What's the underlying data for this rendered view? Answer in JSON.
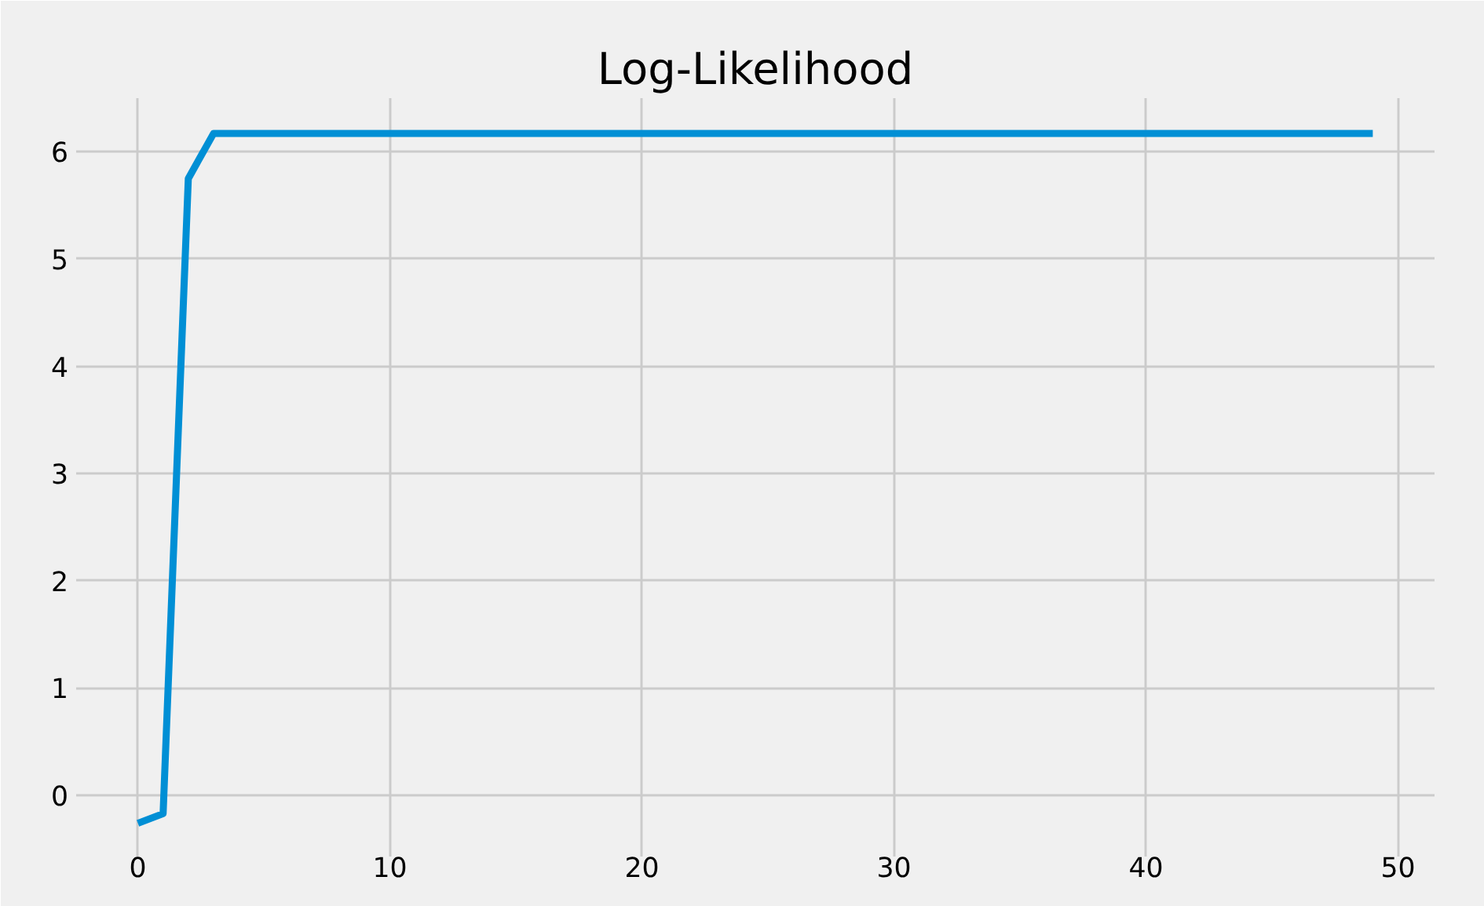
{
  "chart_data": {
    "type": "line",
    "title": "Log-Likelihood",
    "x": [
      0,
      1,
      2,
      3,
      4,
      5,
      6,
      7,
      8,
      9,
      10,
      11,
      12,
      13,
      14,
      15,
      16,
      17,
      18,
      19,
      20,
      21,
      22,
      23,
      24,
      25,
      26,
      27,
      28,
      29,
      30,
      31,
      32,
      33,
      34,
      35,
      36,
      37,
      38,
      39,
      40,
      41,
      42,
      43,
      44,
      45,
      46,
      47,
      48,
      49
    ],
    "series": [
      {
        "color": "#008fd5",
        "values": [
          -0.26,
          -0.17,
          5.75,
          6.17,
          6.17,
          6.17,
          6.17,
          6.17,
          6.17,
          6.17,
          6.17,
          6.17,
          6.17,
          6.17,
          6.17,
          6.17,
          6.17,
          6.17,
          6.17,
          6.17,
          6.17,
          6.17,
          6.17,
          6.17,
          6.17,
          6.17,
          6.17,
          6.17,
          6.17,
          6.17,
          6.17,
          6.17,
          6.17,
          6.17,
          6.17,
          6.17,
          6.17,
          6.17,
          6.17,
          6.17,
          6.17,
          6.17,
          6.17,
          6.17,
          6.17,
          6.17,
          6.17,
          6.17,
          6.17,
          6.17
        ]
      }
    ],
    "xlim": [
      -2.45,
      51.45
    ],
    "ylim": [
      -0.57,
      6.5
    ],
    "xticks": [
      0,
      10,
      20,
      30,
      40,
      50
    ],
    "yticks": [
      0,
      1,
      2,
      3,
      4,
      5,
      6
    ],
    "grid": true,
    "line_style": "solid"
  }
}
